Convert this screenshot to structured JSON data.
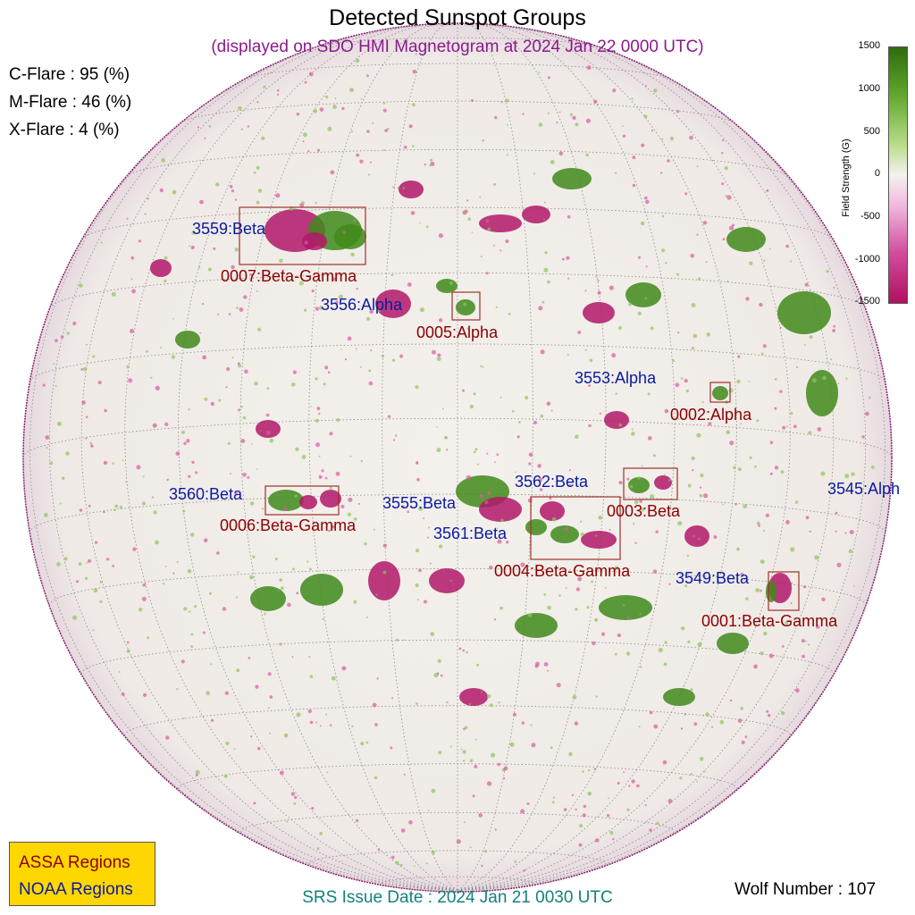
{
  "title": "Detected Sunspot Groups",
  "subtitle": "(displayed on SDO HMI Magnetogram at 2024 Jan 22 0000 UTC)",
  "flares": [
    {
      "label": "C-Flare : 95 (%)"
    },
    {
      "label": "M-Flare : 46 (%)"
    },
    {
      "label": "X-Flare :  4 (%)"
    }
  ],
  "colorbar": {
    "title": "Field Strength (G)",
    "ticks": [
      "1500",
      "1000",
      "500",
      "0",
      "-500",
      "-1000",
      "-1500"
    ],
    "positive_color": "#2e6b0d",
    "negative_color": "#b0105e"
  },
  "noaa_regions": [
    {
      "label": "3559:Beta"
    },
    {
      "label": "3556:Alpha"
    },
    {
      "label": "3553:Alpha"
    },
    {
      "label": "3560:Beta"
    },
    {
      "label": "3555:Beta"
    },
    {
      "label": "3562:Beta"
    },
    {
      "label": "3561:Beta"
    },
    {
      "label": "3545:Alph"
    },
    {
      "label": "3549:Beta"
    }
  ],
  "assa_regions": [
    {
      "label": "0007:Beta-Gamma"
    },
    {
      "label": "0005:Alpha"
    },
    {
      "label": "0002:Alpha"
    },
    {
      "label": "0006:Beta-Gamma"
    },
    {
      "label": "0003:Beta"
    },
    {
      "label": "0004:Beta-Gamma"
    },
    {
      "label": "0001:Beta-Gamma"
    }
  ],
  "legend": {
    "assa": "ASSA Regions",
    "noaa": "NOAA Regions",
    "assa_color": "#8b0000",
    "noaa_color": "#0a1aa0",
    "background": "#ffd700"
  },
  "srs_issue": "SRS Issue Date : 2024 Jan 21 0030 UTC",
  "wolf_number": "Wolf Number : 107"
}
